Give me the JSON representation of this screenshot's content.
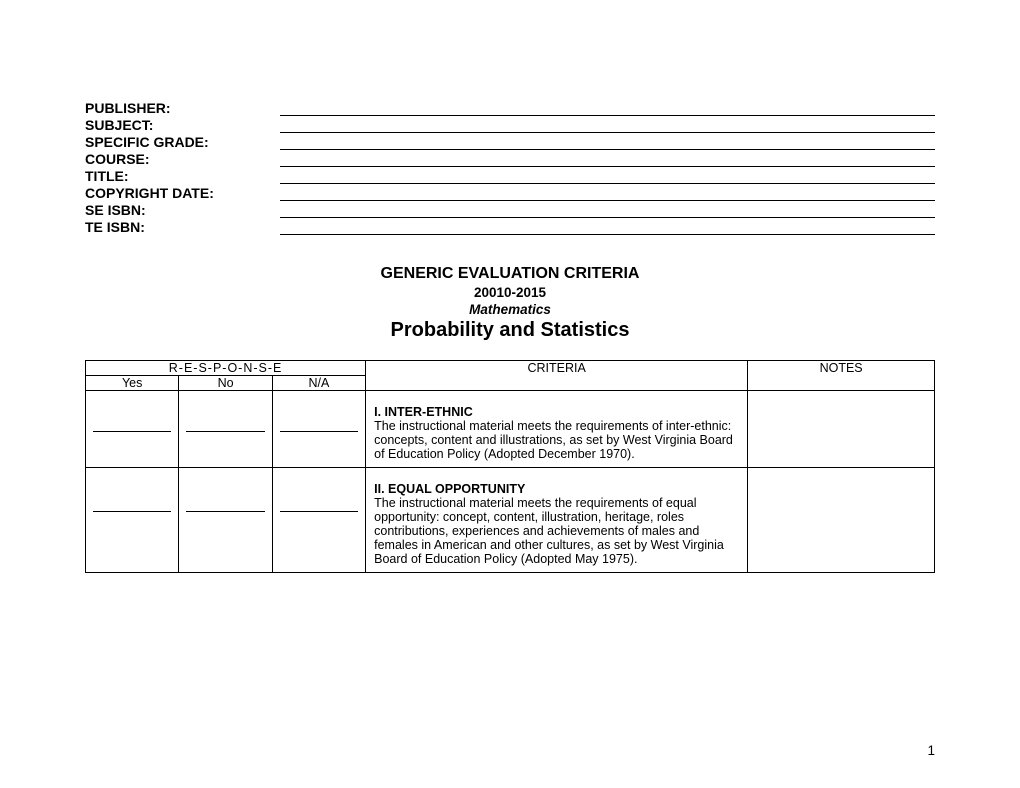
{
  "fonts": {
    "body_family": "Arial",
    "label_fontsize": 14,
    "title_fontsize": 16,
    "topic_fontsize": 20,
    "table_fontsize": 12.5
  },
  "colors": {
    "background": "#ffffff",
    "text": "#000000",
    "border": "#000000"
  },
  "header": {
    "fields": [
      {
        "label": "PUBLISHER:"
      },
      {
        "label": "SUBJECT:"
      },
      {
        "label": "SPECIFIC GRADE:"
      },
      {
        "label": "COURSE:"
      },
      {
        "label": "TITLE:"
      },
      {
        "label": "COPYRIGHT DATE:"
      },
      {
        "label": "SE ISBN:"
      },
      {
        "label": "TE ISBN:"
      }
    ]
  },
  "title": {
    "main": "GENERIC EVALUATION CRITERIA",
    "years": "20010-2015",
    "subject": "Mathematics",
    "topic": "Probability and Statistics"
  },
  "table": {
    "response_header": "R-E-S-P-O-N-S-E",
    "columns": {
      "yes": "Yes",
      "no": "No",
      "na": "N/A",
      "criteria": "CRITERIA",
      "notes": "NOTES"
    },
    "rows": [
      {
        "criteria_heading": "I.   INTER-ETHNIC",
        "criteria_body": "The instructional material meets the requirements of inter-ethnic:  concepts, content and illustrations, as set by West Virginia Board of Education Policy (Adopted December 1970)."
      },
      {
        "criteria_heading": "II.  EQUAL OPPORTUNITY",
        "criteria_body": "The instructional material meets the requirements of equal opportunity: concept, content, illustration, heritage, roles contributions, experiences and achievements of males and females in American and other cultures, as set by West Virginia Board of Education Policy (Adopted May 1975)."
      }
    ]
  },
  "page_number": "1"
}
